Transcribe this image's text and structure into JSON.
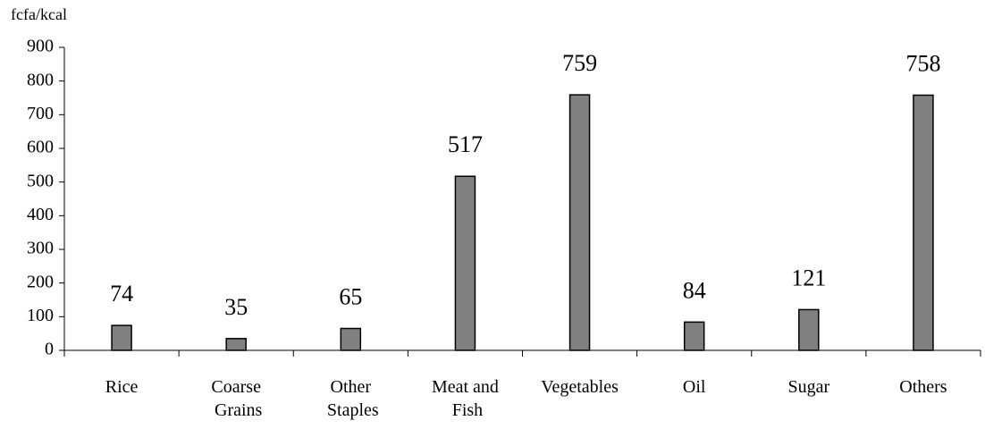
{
  "chart_data": {
    "type": "bar",
    "y_axis_label": "fcfa/kcal",
    "categories": [
      "Rice",
      "Coarse Grains",
      "Other Staples",
      "Meat and Fish",
      "Vegetables",
      "Oil",
      "Sugar",
      "Others"
    ],
    "values": [
      74,
      35,
      65,
      517,
      759,
      84,
      121,
      758
    ],
    "color": "#808080",
    "ylim": [
      0,
      900
    ],
    "yticks": [
      0,
      100,
      200,
      300,
      400,
      500,
      600,
      700,
      800,
      900
    ],
    "grid": false
  }
}
